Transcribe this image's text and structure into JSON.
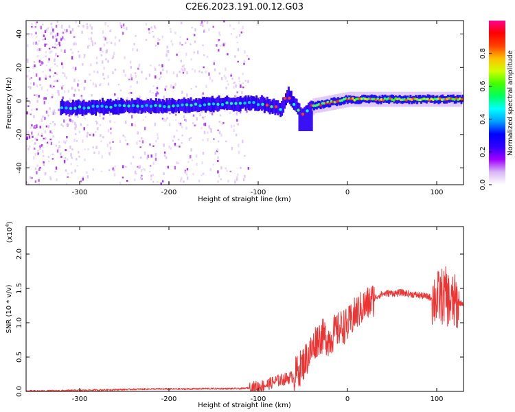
{
  "figure": {
    "title": "C2E6.2023.191.00.12.G03"
  },
  "chart_data": [
    {
      "type": "heatmap",
      "xlabel": "Height of straight line (km)",
      "ylabel": "Frequency (Hz)",
      "xlim": [
        -360,
        130
      ],
      "ylim": [
        -50,
        48
      ],
      "xticks": [
        -300,
        -200,
        -100,
        0,
        100
      ],
      "xtick_labels": [
        "-300",
        "-200",
        "-100",
        "0",
        "100"
      ],
      "yticks": [
        -40,
        -20,
        0,
        20,
        40
      ],
      "ytick_labels": [
        "-40",
        "-20",
        "0",
        "20",
        "40"
      ],
      "colorbar": {
        "label": "Normalized spectral amplitude",
        "range": [
          0,
          1
        ],
        "ticks": [
          0.0,
          0.2,
          0.4,
          0.6,
          0.8
        ],
        "tick_labels": [
          "0.0",
          "0.2",
          "0.4",
          "0.6",
          "0.8"
        ],
        "colormap": [
          "#ffffff",
          "#d9b8f5",
          "#a000ff",
          "#3000ff",
          "#0000ff",
          "#00a0ff",
          "#00ffff",
          "#00ff60",
          "#40ff00",
          "#d0ff00",
          "#ffc000",
          "#ff4000",
          "#ff0000",
          "#ff0090"
        ]
      },
      "ridge_frequency": {
        "x": [
          -320,
          -300,
          -250,
          -200,
          -150,
          -110,
          -95,
          -80,
          -75,
          -68,
          -64,
          -58,
          -52,
          -47,
          -40,
          -30,
          -20,
          -10,
          0,
          20,
          60,
          100,
          130
        ],
        "y": [
          -4,
          -4,
          -3,
          -3,
          -2,
          -1,
          -2,
          -4,
          -5,
          4,
          1,
          -3,
          -8,
          -7,
          -3,
          -2,
          -1,
          0,
          1,
          1,
          1,
          1,
          1
        ]
      },
      "faint_speckle_region_x": [
        -360,
        -110
      ],
      "grid": false
    },
    {
      "type": "line",
      "xlabel": "Height of straight line (km)",
      "ylabel": "SNR (10 * v/v)",
      "y_scale_label": "(x10",
      "y_scale_exponent": "4",
      "y_scale_suffix": ")",
      "xlim": [
        -360,
        130
      ],
      "ylim": [
        0,
        24000
      ],
      "xticks": [
        -300,
        -200,
        -100,
        0,
        100
      ],
      "xtick_labels": [
        "-300",
        "-200",
        "-100",
        "0",
        "100"
      ],
      "yticks": [
        0,
        5000,
        10000,
        15000,
        20000
      ],
      "ytick_labels": [
        "0.0",
        "0.5",
        "1.0",
        "1.5",
        "2.0"
      ],
      "color": "#ee3333",
      "grid": false,
      "x": [
        -360,
        -340,
        -320,
        -300,
        -280,
        -260,
        -240,
        -220,
        -200,
        -180,
        -160,
        -140,
        -120,
        -110,
        -100,
        -90,
        -80,
        -70,
        -60,
        -55,
        -50,
        -45,
        -40,
        -35,
        -30,
        -25,
        -20,
        -15,
        -10,
        -5,
        0,
        5,
        10,
        15,
        20,
        25,
        30,
        35,
        40,
        45,
        50,
        55,
        60,
        65,
        70,
        75,
        80,
        85,
        90,
        95,
        100,
        105,
        110,
        115,
        120,
        125,
        130
      ],
      "y": [
        50,
        60,
        100,
        150,
        200,
        250,
        300,
        350,
        350,
        350,
        400,
        400,
        400,
        500,
        700,
        1000,
        1500,
        1800,
        2200,
        3000,
        4000,
        5000,
        6000,
        7500,
        8000,
        8000,
        7500,
        8500,
        9000,
        9500,
        9500,
        10500,
        11500,
        12000,
        12500,
        13000,
        13500,
        14000,
        14200,
        14300,
        14300,
        14300,
        14400,
        14300,
        14200,
        14100,
        14000,
        13900,
        13800,
        13600,
        13500,
        13800,
        14000,
        13000,
        12900,
        12900,
        12800
      ]
    }
  ]
}
